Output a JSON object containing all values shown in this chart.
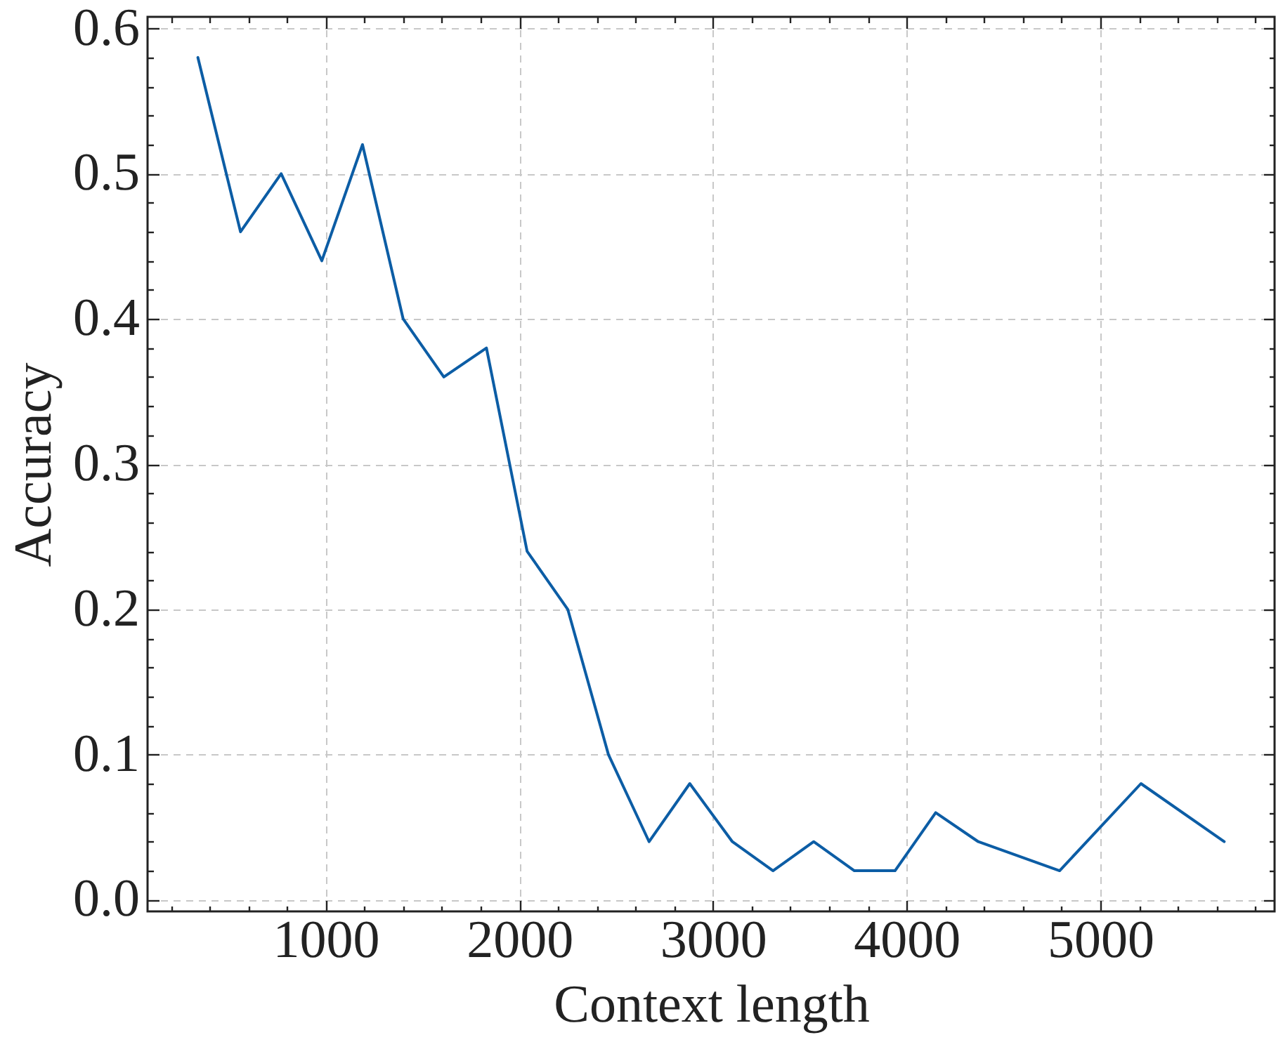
{
  "chart_data": {
    "type": "line",
    "xlabel": "Context length",
    "ylabel": "Accuracy",
    "x": [
      340,
      560,
      770,
      980,
      1190,
      1400,
      1610,
      1830,
      2040,
      2250,
      2460,
      2670,
      2880,
      3100,
      3310,
      3520,
      3730,
      3940,
      4150,
      4370,
      4790,
      5210,
      5640
    ],
    "series": [
      {
        "color": "#0c5da5",
        "values": [
          0.58,
          0.46,
          0.5,
          0.44,
          0.52,
          0.4,
          0.36,
          0.38,
          0.24,
          0.2,
          0.1,
          0.04,
          0.08,
          0.04,
          0.02,
          0.04,
          0.02,
          0.02,
          0.06,
          0.04,
          0.02,
          0.08,
          0.04
        ]
      }
    ],
    "xlim": [
      80,
      5900
    ],
    "xticks": [
      {
        "value": 200,
        "label": null
      },
      {
        "value": 400,
        "label": null
      },
      {
        "value": 600,
        "label": null
      },
      {
        "value": 800,
        "label": null
      },
      1000,
      {
        "value": 1200,
        "label": null
      },
      {
        "value": 1400,
        "label": null
      },
      {
        "value": 1600,
        "label": null
      },
      {
        "value": 1800,
        "label": null
      },
      2000,
      {
        "value": 2200,
        "label": null
      },
      {
        "value": 2400,
        "label": null
      },
      {
        "value": 2600,
        "label": null
      },
      {
        "value": 2800,
        "label": null
      },
      3000,
      {
        "value": 3200,
        "label": null
      },
      {
        "value": 3400,
        "label": null
      },
      {
        "value": 3600,
        "label": null
      },
      {
        "value": 3800,
        "label": null
      },
      4000,
      {
        "value": 4200,
        "label": null
      },
      {
        "value": 4400,
        "label": null
      },
      {
        "value": 4600,
        "label": null
      },
      {
        "value": 4800,
        "label": null
      },
      5000,
      {
        "value": 5200,
        "label": null
      },
      {
        "value": 5400,
        "label": null
      },
      {
        "value": 5600,
        "label": null
      },
      {
        "value": 5800,
        "label": null
      }
    ],
    "ylim": [
      -0.008,
      0.608
    ],
    "yticks": [
      {
        "value": 0,
        "label": "0.0"
      },
      {
        "value": 0.02,
        "label": null
      },
      {
        "value": 0.04,
        "label": null
      },
      {
        "value": 0.06,
        "label": null
      },
      {
        "value": 0.08,
        "label": null
      },
      0.1,
      {
        "value": 0.12,
        "label": null
      },
      {
        "value": 0.14,
        "label": null
      },
      {
        "value": 0.16,
        "label": null
      },
      {
        "value": 0.18,
        "label": null
      },
      0.2,
      {
        "value": 0.22,
        "label": null
      },
      {
        "value": 0.24,
        "label": null
      },
      {
        "value": 0.26,
        "label": null
      },
      {
        "value": 0.28,
        "label": null
      },
      0.3,
      {
        "value": 0.32,
        "label": null
      },
      {
        "value": 0.34,
        "label": null
      },
      {
        "value": 0.36,
        "label": null
      },
      {
        "value": 0.38,
        "label": null
      },
      0.4,
      {
        "value": 0.42,
        "label": null
      },
      {
        "value": 0.44,
        "label": null
      },
      {
        "value": 0.46,
        "label": null
      },
      {
        "value": 0.48,
        "label": null
      },
      0.5,
      {
        "value": 0.52,
        "label": null
      },
      {
        "value": 0.54,
        "label": null
      },
      {
        "value": 0.56,
        "label": null
      },
      {
        "value": 0.58,
        "label": null
      },
      0.6
    ],
    "grid": true
  }
}
